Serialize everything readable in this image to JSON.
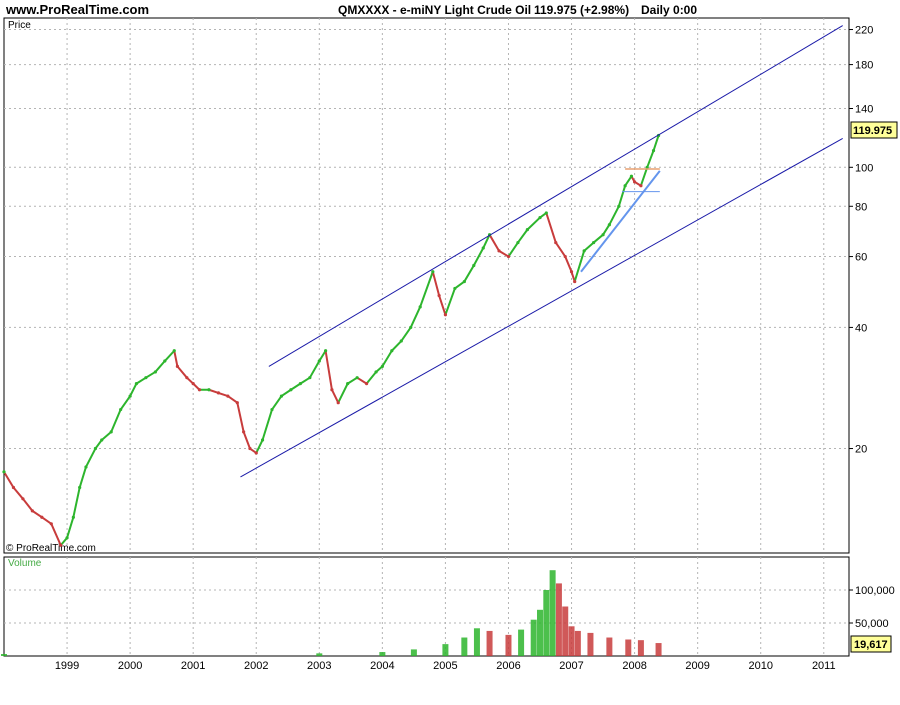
{
  "header": {
    "site": "www.ProRealTime.com",
    "symbol": "QMXXXX - e-miNY Light Crude Oil",
    "price": "119.975 (+2.98%)",
    "interval": "Daily  0:00"
  },
  "price_panel": {
    "label": "Price",
    "copyright": "© ProRealTime.com",
    "last_value": "119.975"
  },
  "volume_panel": {
    "label": "Volume",
    "last_value": "19,617"
  },
  "colors": {
    "up": "#2db52d",
    "down": "#c83c3c",
    "channel": "#1a1aa8",
    "trend": "#6495ed",
    "grid": "#b4b4b4",
    "volume_label": "#44aa44"
  },
  "chart_data": [
    {
      "type": "line",
      "panel": "price",
      "title": "QMXXXX - e-miNY Light Crude Oil",
      "scale": "log",
      "ylim": [
        11,
        235
      ],
      "xlim": [
        1998.0,
        2011.4
      ],
      "y_ticks": [
        20,
        40,
        60,
        80,
        100,
        140,
        180,
        220
      ],
      "x_ticks": [
        "1999",
        "2000",
        "2001",
        "2002",
        "2003",
        "2004",
        "2005",
        "2006",
        "2007",
        "2008",
        "2009",
        "2010",
        "2011"
      ],
      "grid": true,
      "series": [
        {
          "x": [
            1998.0,
            1998.15,
            1998.3,
            1998.45,
            1998.6,
            1998.75,
            1998.9,
            1999.0,
            1999.1,
            1999.2,
            1999.3,
            1999.45,
            1999.55,
            1999.7,
            1999.85,
            2000.0,
            2000.1,
            2000.25,
            2000.4,
            2000.55,
            2000.7,
            2000.75,
            2000.9,
            2001.0,
            2001.1,
            2001.25,
            2001.4,
            2001.55,
            2001.7,
            2001.8,
            2001.9,
            2002.0,
            2002.1,
            2002.25,
            2002.4,
            2002.55,
            2002.7,
            2002.85,
            2003.0,
            2003.1,
            2003.2,
            2003.3,
            2003.45,
            2003.6,
            2003.75,
            2003.9,
            2004.0,
            2004.15,
            2004.3,
            2004.45,
            2004.6,
            2004.8,
            2004.9,
            2005.0,
            2005.15,
            2005.3,
            2005.45,
            2005.6,
            2005.7,
            2005.85,
            2006.0,
            2006.15,
            2006.3,
            2006.5,
            2006.6,
            2006.75,
            2006.9,
            2007.0,
            2007.05,
            2007.2,
            2007.35,
            2007.5,
            2007.6,
            2007.75,
            2007.85,
            2007.95,
            2008.0,
            2008.1,
            2008.2,
            2008.3,
            2008.38
          ],
          "y": [
            17.5,
            16.0,
            15.0,
            14.0,
            13.5,
            13.0,
            11.5,
            12.0,
            13.5,
            16.0,
            18.0,
            20.0,
            21.0,
            22.0,
            25.0,
            27.0,
            29.0,
            30.0,
            31.0,
            33.0,
            35.0,
            32.0,
            30.0,
            29.0,
            28.0,
            28.0,
            27.5,
            27.0,
            26.0,
            22.0,
            20.0,
            19.5,
            21.0,
            25.0,
            27.0,
            28.0,
            29.0,
            30.0,
            33.0,
            35.0,
            28.0,
            26.0,
            29.0,
            30.0,
            29.0,
            31.0,
            32.0,
            35.0,
            37.0,
            40.0,
            45.0,
            55.0,
            48.0,
            43.0,
            50.0,
            52.0,
            57.0,
            63.0,
            68.0,
            62.0,
            60.0,
            65.0,
            70.0,
            75.0,
            77.0,
            65.0,
            60.0,
            55.0,
            52.0,
            62.0,
            65.0,
            68.0,
            72.0,
            80.0,
            90.0,
            95.0,
            92.0,
            90.0,
            100.0,
            110.0,
            119.975
          ]
        }
      ],
      "annotations": {
        "channel_upper": {
          "x": [
            2002.2,
            2011.3
          ],
          "y": [
            32,
            225
          ]
        },
        "channel_lower": {
          "x": [
            2001.75,
            2011.3
          ],
          "y": [
            17,
            118
          ]
        },
        "trendline": {
          "x": [
            2007.15,
            2008.4
          ],
          "y": [
            55,
            98
          ]
        },
        "flag_top": {
          "x": [
            2007.85,
            2008.4
          ],
          "y": [
            99,
            99
          ]
        },
        "flag_bottom": {
          "x": [
            2007.8,
            2008.4
          ],
          "y": [
            87,
            87
          ]
        }
      }
    },
    {
      "type": "bar",
      "panel": "volume",
      "title": "Volume",
      "ylim": [
        0,
        150000
      ],
      "y_ticks": [
        50000,
        100000
      ],
      "y_tick_labels": [
        "50,000",
        "100,000"
      ],
      "x": [
        1998.0,
        2003.0,
        2004.0,
        2004.5,
        2005.0,
        2005.3,
        2005.5,
        2005.7,
        2006.0,
        2006.2,
        2006.4,
        2006.5,
        2006.6,
        2006.7,
        2006.8,
        2006.9,
        2007.0,
        2007.1,
        2007.3,
        2007.6,
        2007.9,
        2008.1,
        2008.38
      ],
      "values": [
        3000,
        4000,
        6000,
        10000,
        18000,
        28000,
        42000,
        38000,
        32000,
        40000,
        55000,
        70000,
        100000,
        130000,
        110000,
        75000,
        45000,
        38000,
        35000,
        28000,
        25000,
        24000,
        19617
      ]
    }
  ]
}
